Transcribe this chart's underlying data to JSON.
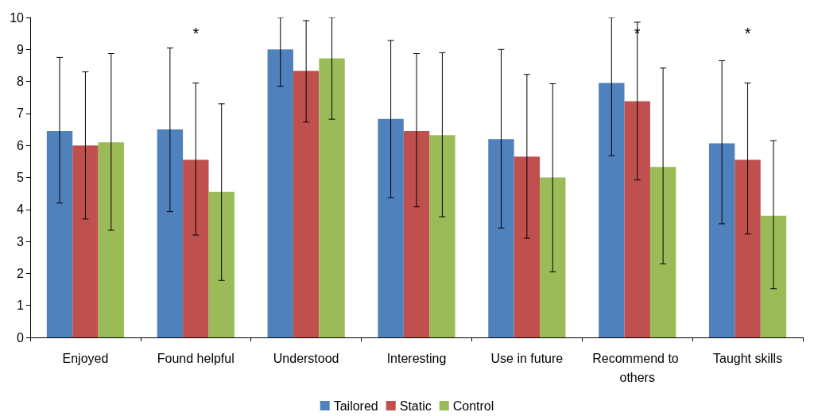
{
  "chart_data": {
    "type": "bar",
    "categories": [
      "Enjoyed",
      "Found helpful",
      "Understood",
      "Interesting",
      "Use in future",
      "Recommend to others",
      "Taught skills"
    ],
    "series": [
      {
        "name": "Tailored",
        "color": "#4f81bd",
        "values": [
          6.45,
          6.5,
          9.0,
          6.83,
          6.2,
          7.95,
          6.07
        ],
        "errors": [
          [
            4.2,
            8.75
          ],
          [
            3.93,
            9.05
          ],
          [
            7.85,
            10
          ],
          [
            4.37,
            9.28
          ],
          [
            3.42,
            9.0
          ],
          [
            5.68,
            10
          ],
          [
            3.55,
            8.65
          ]
        ]
      },
      {
        "name": "Static",
        "color": "#c0504d",
        "values": [
          6.0,
          5.55,
          8.33,
          6.45,
          5.65,
          7.38,
          5.55
        ],
        "errors": [
          [
            3.7,
            8.3
          ],
          [
            3.2,
            7.95
          ],
          [
            6.73,
            9.9
          ],
          [
            4.08,
            8.87
          ],
          [
            3.1,
            8.22
          ],
          [
            4.92,
            9.85
          ],
          [
            3.23,
            7.95
          ]
        ]
      },
      {
        "name": "Control",
        "color": "#9bbb59",
        "values": [
          6.1,
          4.55,
          8.72,
          6.32,
          5.0,
          5.33,
          3.8
        ],
        "errors": [
          [
            3.35,
            8.87
          ],
          [
            1.78,
            7.3
          ],
          [
            6.82,
            10
          ],
          [
            3.77,
            8.9
          ],
          [
            2.05,
            7.93
          ],
          [
            2.3,
            8.42
          ],
          [
            1.52,
            6.15
          ]
        ]
      }
    ],
    "ylim": [
      0,
      10
    ],
    "yticks": [
      0,
      1,
      2,
      3,
      4,
      5,
      6,
      7,
      8,
      9,
      10
    ],
    "grid": false,
    "legend": "bottom",
    "annotations": [
      "*",
      "*",
      "*"
    ]
  }
}
